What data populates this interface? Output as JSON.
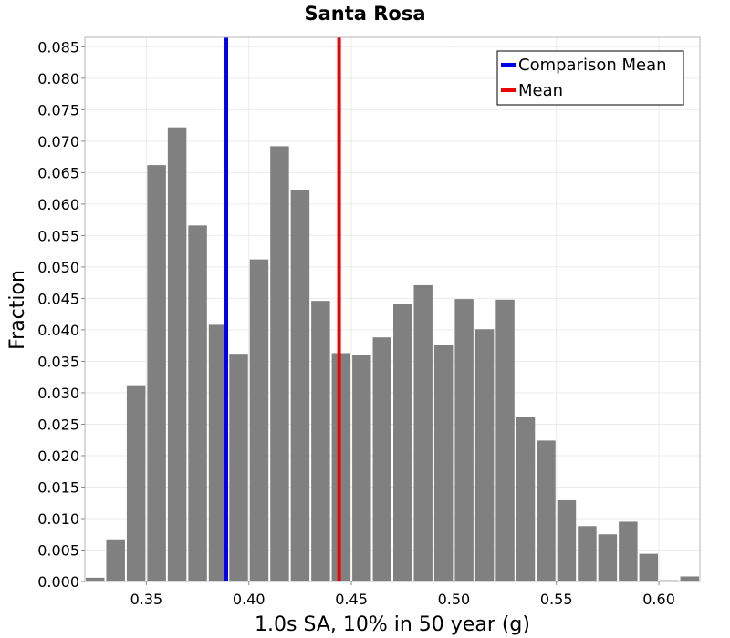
{
  "chart_data": {
    "type": "bar",
    "title": "Santa Rosa",
    "xlabel": "1.0s SA, 10% in 50 year (g)",
    "ylabel": "Fraction",
    "xlim": [
      0.32,
      0.62
    ],
    "ylim": [
      0,
      0.0865
    ],
    "grid": true,
    "legend_position": "top-right",
    "x_ticks": [
      "0.35",
      "0.40",
      "0.45",
      "0.50",
      "0.55",
      "0.60"
    ],
    "x_tick_values": [
      0.35,
      0.4,
      0.45,
      0.5,
      0.55,
      0.6
    ],
    "y_ticks": [
      "0.000",
      "0.005",
      "0.010",
      "0.015",
      "0.020",
      "0.025",
      "0.030",
      "0.035",
      "0.040",
      "0.045",
      "0.050",
      "0.055",
      "0.060",
      "0.065",
      "0.070",
      "0.075",
      "0.080",
      "0.085"
    ],
    "y_tick_values": [
      0.0,
      0.005,
      0.01,
      0.015,
      0.02,
      0.025,
      0.03,
      0.035,
      0.04,
      0.045,
      0.05,
      0.055,
      0.06,
      0.065,
      0.07,
      0.075,
      0.08,
      0.085
    ],
    "bin_width": 0.01,
    "bin_centers": [
      0.325,
      0.335,
      0.345,
      0.355,
      0.365,
      0.375,
      0.385,
      0.395,
      0.405,
      0.415,
      0.425,
      0.435,
      0.445,
      0.455,
      0.465,
      0.475,
      0.485,
      0.495,
      0.505,
      0.515,
      0.525,
      0.535,
      0.545,
      0.555,
      0.565,
      0.575,
      0.585,
      0.595,
      0.605,
      0.615
    ],
    "values": [
      0.0006,
      0.0067,
      0.0312,
      0.0662,
      0.0722,
      0.0566,
      0.0408,
      0.0362,
      0.0512,
      0.0692,
      0.0622,
      0.0446,
      0.0363,
      0.036,
      0.0388,
      0.0441,
      0.0471,
      0.0376,
      0.0449,
      0.0401,
      0.0448,
      0.0261,
      0.0224,
      0.0129,
      0.0088,
      0.0075,
      0.0095,
      0.0044,
      0.0002,
      0.0008
    ],
    "bar_color": "#808080",
    "series_lines": [
      {
        "name": "Comparison Mean",
        "x": 0.389,
        "color": "#0000ee"
      },
      {
        "name": "Mean",
        "x": 0.444,
        "color": "#ee0000"
      }
    ]
  }
}
